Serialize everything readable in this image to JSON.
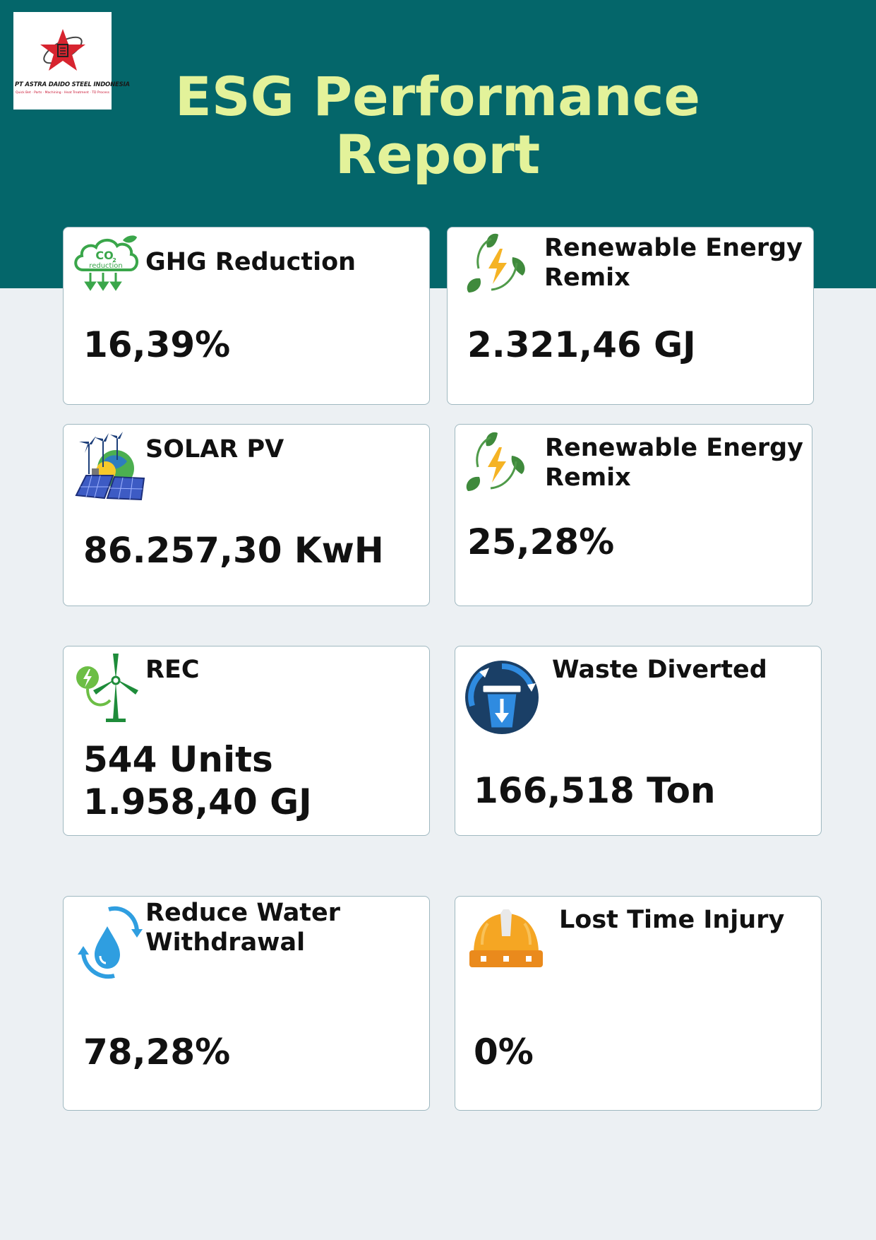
{
  "header": {
    "logo": {
      "company_name": "PT ASTRA DAIDO STEEL INDONESIA",
      "tagline": "Quick Bet · Parts · Machining · Heat Treatment · TD Process",
      "brand_color": "#d7242f"
    },
    "title_line1": "ESG Performance",
    "title_line2": "Report",
    "title_color": "#e3f29a",
    "background_color": "#04666a"
  },
  "cards": [
    {
      "icon": "co2-reduction-cloud-icon",
      "icon_text_main": "CO",
      "icon_text_sub": "2",
      "icon_caption": "reduction",
      "label_line1": "GHG Reduction",
      "label_line2": "",
      "value_line1": "16,39%",
      "value_line2": ""
    },
    {
      "icon": "renewable-energy-leaf-bolt-icon",
      "label_line1": "Renewable Energy",
      "label_line2": "Remix",
      "value_line1": "2.321,46 GJ",
      "value_line2": ""
    },
    {
      "icon": "solar-pv-panels-icon",
      "label_line1": "SOLAR PV",
      "label_line2": "",
      "value_line1": "86.257,30 KwH",
      "value_line2": ""
    },
    {
      "icon": "renewable-energy-leaf-bolt-icon",
      "label_line1": "Renewable Energy",
      "label_line2": "Remix",
      "value_line1": "25,28%",
      "value_line2": ""
    },
    {
      "icon": "wind-turbine-plug-icon",
      "label_line1": "REC",
      "label_line2": "",
      "value_line1": "544 Units",
      "value_line2": "1.958,40 GJ"
    },
    {
      "icon": "waste-bin-recycle-icon",
      "label_line1": "Waste Diverted",
      "label_line2": "",
      "value_line1": "166,518 Ton",
      "value_line2": ""
    },
    {
      "icon": "water-drop-cycle-icon",
      "label_line1": "Reduce Water",
      "label_line2": "Withdrawal",
      "value_line1": "78,28%",
      "value_line2": ""
    },
    {
      "icon": "safety-helmet-icon",
      "label_line1": "Lost Time Injury",
      "label_line2": "",
      "value_line1": "0%",
      "value_line2": ""
    }
  ]
}
